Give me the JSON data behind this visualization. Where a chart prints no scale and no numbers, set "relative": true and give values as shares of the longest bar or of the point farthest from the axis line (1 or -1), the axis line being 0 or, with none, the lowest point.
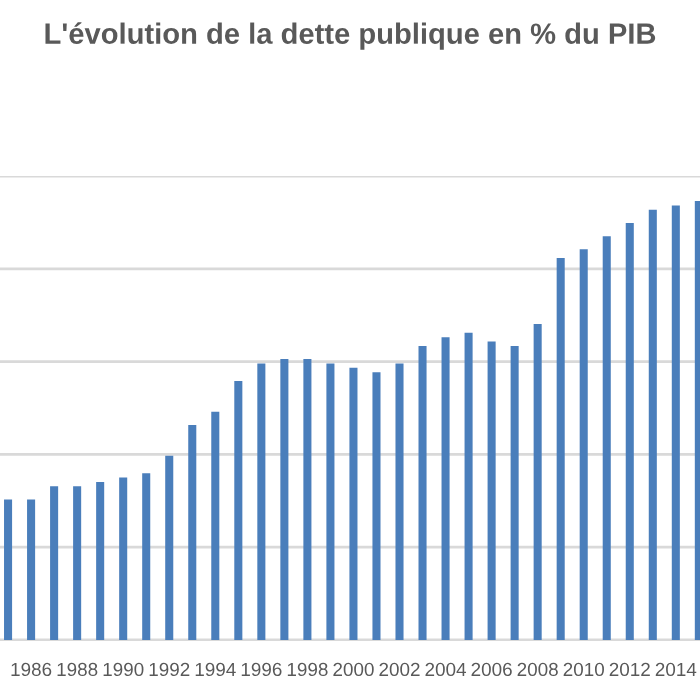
{
  "chart_data": {
    "type": "bar",
    "title": "L'évolution de la dette publique en % du PIB",
    "relative": true,
    "grid": "y",
    "color": "#4a7ebb",
    "categories": [
      null,
      "1986",
      null,
      "1988",
      null,
      "1990",
      null,
      "1992",
      null,
      "1994",
      null,
      "1996",
      null,
      "1998",
      null,
      "2000",
      null,
      "2002",
      null,
      "2004",
      null,
      "2006",
      null,
      "2008",
      null,
      "2010",
      null,
      "2012",
      null,
      "2014",
      null
    ],
    "values": [
      0.32,
      0.32,
      0.35,
      0.35,
      0.36,
      0.37,
      0.38,
      0.42,
      0.49,
      0.52,
      0.59,
      0.63,
      0.64,
      0.64,
      0.63,
      0.62,
      0.61,
      0.63,
      0.67,
      0.69,
      0.7,
      0.68,
      0.67,
      0.72,
      0.87,
      0.89,
      0.92,
      0.95,
      0.98,
      0.99,
      1
    ]
  }
}
